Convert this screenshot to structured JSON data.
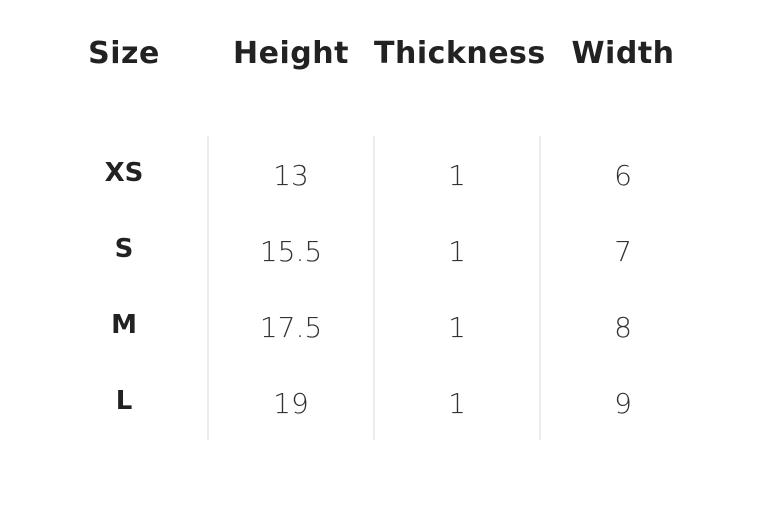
{
  "table": {
    "headers": [
      "Size",
      "Height",
      "Thickness",
      "Width"
    ],
    "rows": [
      [
        "XS",
        "13",
        "1",
        "6"
      ],
      [
        "S",
        "15.5",
        "1",
        "7"
      ],
      [
        "M",
        "17.5",
        "1",
        "8"
      ],
      [
        "L",
        "19",
        "1",
        "9"
      ]
    ]
  }
}
